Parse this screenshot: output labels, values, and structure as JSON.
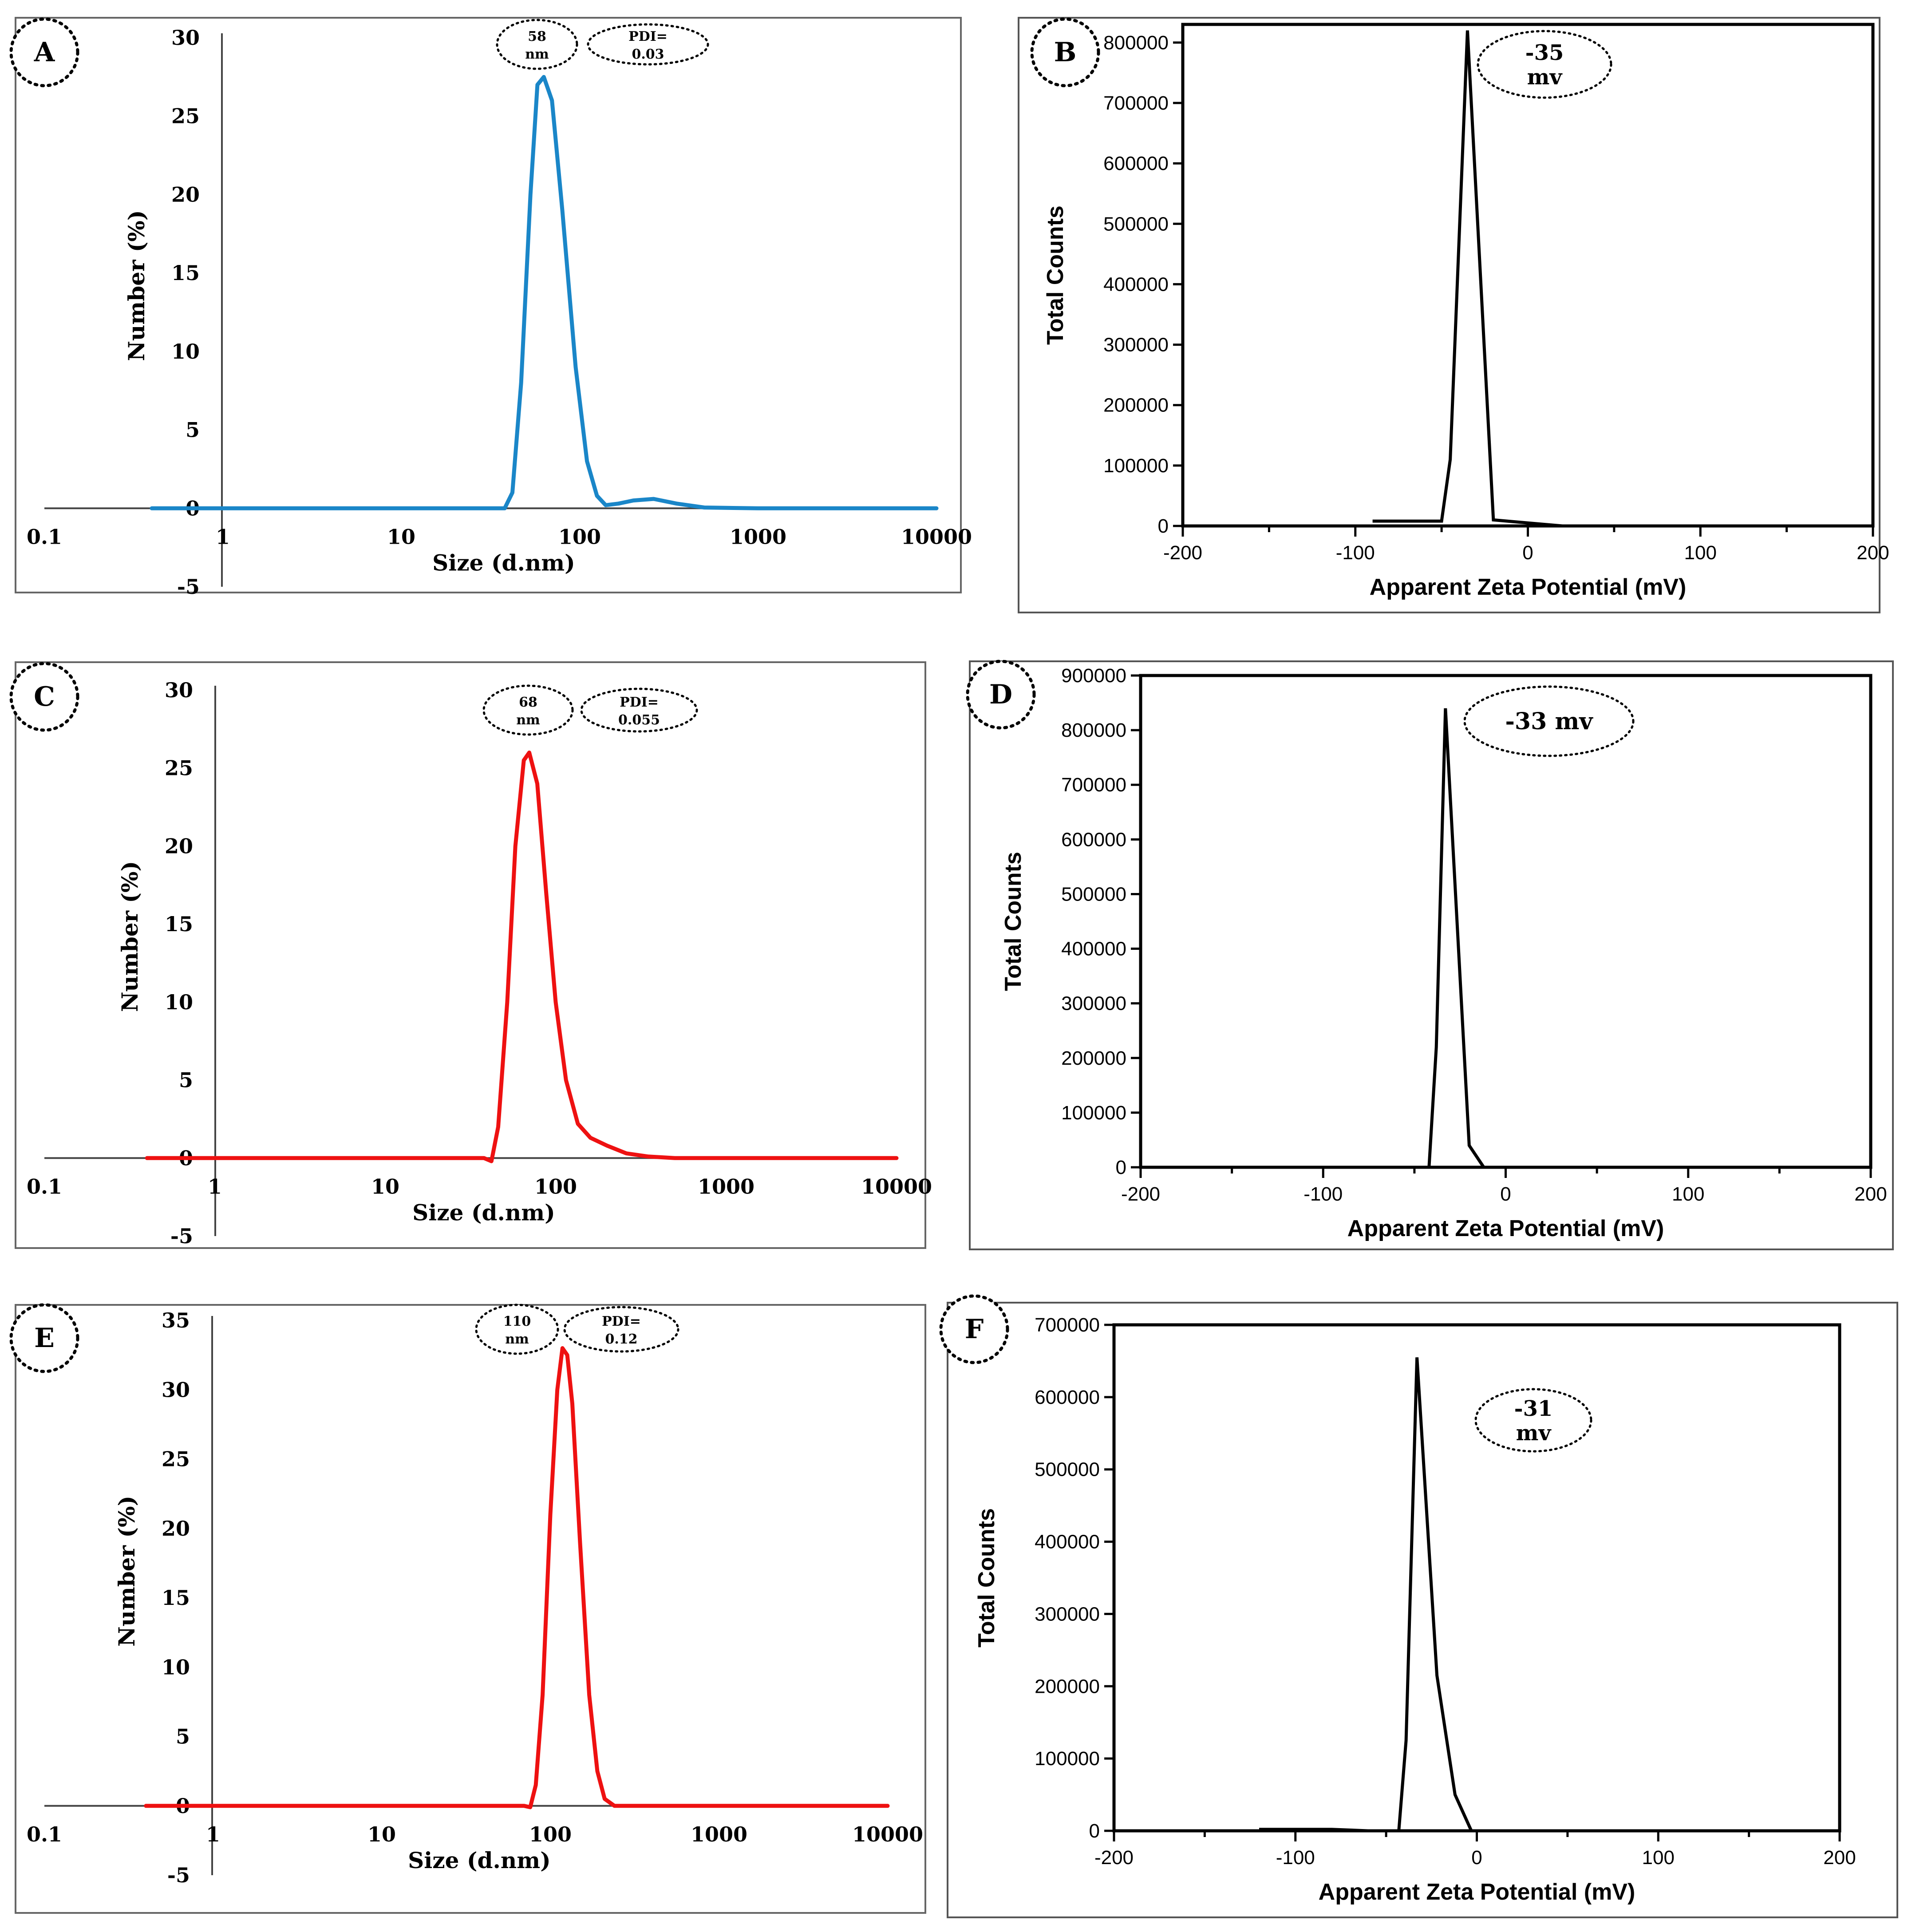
{
  "chart_data": [
    {
      "type": "line",
      "panel": "A",
      "xscale": "log",
      "xlabel": "Size (d.nm)",
      "ylabel": "Number (%)",
      "xticks": [
        "0.1",
        "1",
        "10",
        "100",
        "1000",
        "10000"
      ],
      "yticks": [
        "30",
        "25",
        "20",
        "15",
        "10",
        "5",
        "0",
        "-5"
      ],
      "ylim": [
        -5,
        30
      ],
      "color": "#1a86c8",
      "annotations": [
        "58 nm",
        "PDI= 0.03"
      ],
      "series": [
        {
          "name": "Number (%)",
          "x": [
            0.4,
            30,
            38,
            42,
            47,
            53,
            58,
            63,
            70,
            80,
            95,
            110,
            125,
            140,
            165,
            200,
            260,
            350,
            500,
            1000,
            10000
          ],
          "y": [
            0,
            0,
            0,
            1,
            8,
            20,
            27,
            27.5,
            26,
            19,
            9,
            3,
            0.8,
            0.2,
            0.3,
            0.5,
            0.6,
            0.3,
            0.05,
            0,
            0
          ]
        }
      ]
    },
    {
      "type": "line",
      "panel": "B",
      "xlabel": "Apparent Zeta Potential (mV)",
      "ylabel": "Total Counts",
      "xticks": [
        "-200",
        "-100",
        "0",
        "100",
        "200"
      ],
      "yticks": [
        "800000",
        "700000",
        "600000",
        "500000",
        "400000",
        "300000",
        "200000",
        "100000",
        "0"
      ],
      "xlim": [
        -200,
        200
      ],
      "ylim": [
        0,
        830000
      ],
      "color": "#000000",
      "annotations": [
        "-35 mv"
      ],
      "series": [
        {
          "name": "Total Counts",
          "x": [
            -90,
            -50,
            -45,
            -35,
            -20,
            0,
            20
          ],
          "y": [
            8000,
            8000,
            110000,
            820000,
            10000,
            5000,
            0
          ]
        }
      ]
    },
    {
      "type": "line",
      "panel": "C",
      "xscale": "log",
      "xlabel": "Size (d.nm)",
      "ylabel": "Number (%)",
      "xticks": [
        "0.1",
        "1",
        "10",
        "100",
        "1000",
        "10000"
      ],
      "yticks": [
        "30",
        "25",
        "20",
        "15",
        "10",
        "5",
        "0",
        "-5"
      ],
      "ylim": [
        -5,
        30
      ],
      "color": "#ee1111",
      "annotations": [
        "68 nm",
        "PDI= 0.055"
      ],
      "series": [
        {
          "name": "Number (%)",
          "x": [
            0.4,
            38,
            42,
            46,
            52,
            58,
            65,
            70,
            78,
            88,
            100,
            115,
            135,
            160,
            200,
            260,
            350,
            500,
            1000,
            10000
          ],
          "y": [
            0,
            0,
            -0.2,
            2,
            10,
            20,
            25.5,
            26,
            24,
            17,
            10,
            5,
            2.2,
            1.3,
            0.8,
            0.3,
            0.1,
            0,
            0,
            0
          ]
        }
      ]
    },
    {
      "type": "line",
      "panel": "D",
      "xlabel": "Apparent Zeta Potential (mV)",
      "ylabel": "Total Counts",
      "xticks": [
        "-200",
        "-100",
        "0",
        "100",
        "200"
      ],
      "yticks": [
        "900000",
        "800000",
        "700000",
        "600000",
        "500000",
        "400000",
        "300000",
        "200000",
        "100000",
        "0"
      ],
      "xlim": [
        -200,
        200
      ],
      "ylim": [
        0,
        900000
      ],
      "color": "#000000",
      "annotations": [
        "-33 mv"
      ],
      "series": [
        {
          "name": "Total Counts",
          "x": [
            -42,
            -38,
            -33,
            -20,
            -12
          ],
          "y": [
            0,
            220000,
            840000,
            40000,
            0
          ]
        }
      ]
    },
    {
      "type": "line",
      "panel": "E",
      "xscale": "log",
      "xlabel": "Size (d.nm)",
      "ylabel": "Number (%)",
      "xticks": [
        "0.1",
        "1",
        "10",
        "100",
        "1000",
        "10000"
      ],
      "yticks": [
        "35",
        "30",
        "25",
        "20",
        "15",
        "10",
        "5",
        "0",
        "-5"
      ],
      "ylim": [
        -5,
        35
      ],
      "color": "#ee1111",
      "annotations": [
        "110 nm",
        "PDI= 0.12"
      ],
      "series": [
        {
          "name": "Number (%)",
          "x": [
            0.4,
            70,
            76,
            82,
            90,
            100,
            110,
            118,
            126,
            135,
            150,
            170,
            190,
            210,
            240,
            300,
            10000
          ],
          "y": [
            0,
            0,
            -0.1,
            1.5,
            8,
            21,
            30,
            33,
            32.5,
            29,
            19,
            8,
            2.5,
            0.5,
            0,
            0,
            0
          ]
        }
      ]
    },
    {
      "type": "line",
      "panel": "F",
      "xlabel": "Apparent Zeta Potential (mV)",
      "ylabel": "Total Counts",
      "xticks": [
        "-200",
        "-100",
        "0",
        "100",
        "200"
      ],
      "yticks": [
        "700000",
        "600000",
        "500000",
        "400000",
        "300000",
        "200000",
        "100000",
        "0"
      ],
      "xlim": [
        -200,
        200
      ],
      "ylim": [
        0,
        700000
      ],
      "color": "#000000",
      "annotations": [
        "-31 mv"
      ],
      "series": [
        {
          "name": "Total Counts",
          "x": [
            -120,
            -80,
            -60,
            -43,
            -39,
            -33,
            -22,
            -12,
            -3
          ],
          "y": [
            2000,
            2000,
            0,
            0,
            125000,
            655000,
            215000,
            50000,
            0
          ]
        }
      ]
    }
  ]
}
